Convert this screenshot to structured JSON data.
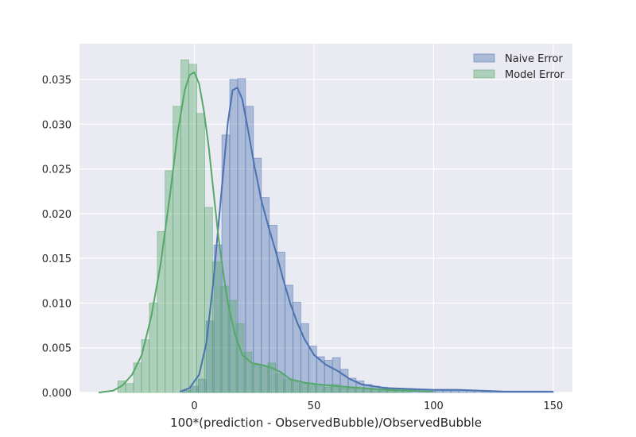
{
  "chart_data": {
    "type": "histogram",
    "title": "",
    "xlabel": "100*(prediction - ObservedBubble)/ObservedBubble",
    "ylabel": "",
    "xlim": [
      -48,
      158
    ],
    "ylim": [
      0,
      0.039
    ],
    "xticks": [
      0,
      50,
      100,
      150
    ],
    "yticks": [
      0.0,
      0.005,
      0.01,
      0.015,
      0.02,
      0.025,
      0.03,
      0.035
    ],
    "grid": true,
    "legend_position": "top-right",
    "colors": {
      "background": "#eaeaf2",
      "grid": "#ffffff",
      "naive": "#4c72b0",
      "model": "#55a868"
    },
    "series": [
      {
        "name": "Naive Error",
        "color": "#4c72b0",
        "bin_edges": [
          -5,
          -1.7,
          1.6,
          4.9,
          8.2,
          11.5,
          14.8,
          18.1,
          21.4,
          24.7,
          28,
          31.3,
          34.6,
          37.9,
          41.2,
          44.5,
          47.8,
          51.1,
          54.4,
          57.7,
          61,
          64.3,
          67.6,
          70.9,
          74.2,
          77.5,
          80.8,
          84.1,
          87.4,
          90.7,
          94,
          97.3,
          100.6,
          103.9,
          107.2,
          110.5,
          113.8,
          117.1,
          120.4,
          123.7,
          127,
          130.3,
          133.6,
          136.9,
          140.2,
          143.5,
          146.8,
          150.1
        ],
        "heights": [
          0.0002,
          0.0007,
          0.0015,
          0.008,
          0.0165,
          0.0288,
          0.035,
          0.0351,
          0.032,
          0.0262,
          0.0218,
          0.0187,
          0.0157,
          0.012,
          0.0101,
          0.0077,
          0.0052,
          0.004,
          0.0036,
          0.0039,
          0.0026,
          0.0016,
          0.0013,
          0.0009,
          0.0007,
          0.0006,
          0.0005,
          0.0004,
          0.0003,
          0.0003,
          0.0003,
          0.0003,
          0.0002,
          0.0002,
          0.0002,
          0.0002,
          0.0002,
          0.0002,
          0.0001,
          0.0001,
          0.0001,
          0.0001,
          0.0001,
          0.0001,
          0.0001,
          0.0001,
          0.0001
        ],
        "kde": {
          "x": [
            -6,
            -2,
            2,
            5,
            8,
            11,
            14,
            16,
            18,
            20,
            22,
            25,
            28,
            31,
            34,
            37,
            40,
            43,
            46,
            50,
            55,
            60,
            65,
            70,
            80,
            90,
            100,
            110,
            120,
            130,
            140,
            150
          ],
          "y": [
            0.0001,
            0.0005,
            0.002,
            0.0055,
            0.0125,
            0.0215,
            0.0302,
            0.0338,
            0.0341,
            0.0328,
            0.03,
            0.0255,
            0.0215,
            0.0185,
            0.0158,
            0.0128,
            0.01,
            0.0078,
            0.006,
            0.0042,
            0.0031,
            0.0024,
            0.0015,
            0.0009,
            0.0005,
            0.0004,
            0.0003,
            0.0003,
            0.0002,
            0.0001,
            0.0001,
            0.0001
          ]
        }
      },
      {
        "name": "Model Error",
        "color": "#55a868",
        "bin_edges": [
          -32,
          -28.7,
          -25.4,
          -22.1,
          -18.8,
          -15.5,
          -12.2,
          -8.9,
          -5.6,
          -2.3,
          1,
          4.3,
          7.6,
          10.9,
          14.2,
          17.5,
          20.8,
          24.1,
          27.4,
          30.7,
          34,
          37.3,
          40.6,
          43.9,
          47.2,
          50.5,
          53.8,
          57.1,
          60.4,
          63.7,
          67,
          70.3,
          73.6,
          76.9,
          80.2,
          83.5,
          86.8,
          90.1
        ],
        "heights": [
          0.0013,
          0.001,
          0.0033,
          0.0059,
          0.01,
          0.018,
          0.0248,
          0.032,
          0.0372,
          0.0367,
          0.0312,
          0.0207,
          0.0146,
          0.0119,
          0.0103,
          0.0077,
          0.0045,
          0.0031,
          0.003,
          0.0033,
          0.0021,
          0.0015,
          0.0013,
          0.001,
          0.001,
          0.0009,
          0.0006,
          0.0009,
          0.0005,
          0.0005,
          0.0005,
          0.0005,
          0.0004,
          0.0004,
          0.0004,
          0.0003,
          0.0003
        ],
        "kde": {
          "x": [
            -40,
            -34,
            -30,
            -26,
            -22,
            -18,
            -14,
            -10,
            -7,
            -4,
            -2,
            0,
            2,
            4,
            6,
            8,
            10,
            12,
            14,
            17,
            20,
            24,
            28,
            32,
            36,
            40,
            46,
            52,
            60,
            70,
            80,
            90,
            100
          ],
          "y": [
            0,
            0.0002,
            0.0008,
            0.002,
            0.0042,
            0.0085,
            0.0145,
            0.0225,
            0.029,
            0.0338,
            0.0355,
            0.0358,
            0.0345,
            0.0315,
            0.0275,
            0.0225,
            0.0175,
            0.0135,
            0.01,
            0.0065,
            0.0042,
            0.0033,
            0.0031,
            0.0028,
            0.0023,
            0.0015,
            0.0011,
            0.0009,
            0.0007,
            0.0005,
            0.0003,
            0.0002,
            0.0001
          ]
        }
      }
    ]
  }
}
